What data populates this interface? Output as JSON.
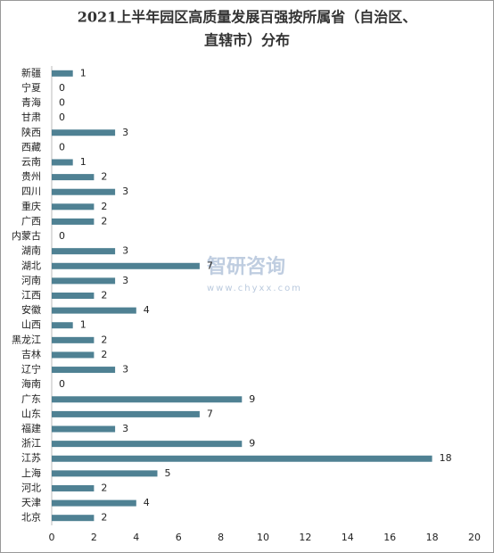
{
  "chart_data": {
    "type": "barh",
    "title": [
      "2021上半年园区高质量发展百强按所属省（自治区、",
      "直辖市）分布"
    ],
    "watermark": [
      "智研咨询",
      "www.chyxx.com"
    ],
    "categories": [
      "新疆",
      "宁夏",
      "青海",
      "甘肃",
      "陕西",
      "西藏",
      "云南",
      "贵州",
      "四川",
      "重庆",
      "广西",
      "内蒙古",
      "湖南",
      "湖北",
      "河南",
      "江西",
      "安徽",
      "山西",
      "黑龙江",
      "吉林",
      "辽宁",
      "海南",
      "广东",
      "山东",
      "福建",
      "浙江",
      "江苏",
      "上海",
      "河北",
      "天津",
      "北京"
    ],
    "values": [
      1,
      0,
      0,
      0,
      3,
      0,
      1,
      2,
      3,
      2,
      2,
      0,
      3,
      7,
      3,
      2,
      4,
      1,
      2,
      2,
      3,
      0,
      9,
      7,
      3,
      9,
      18,
      5,
      2,
      4,
      2
    ],
    "color": "#4f8193",
    "xlim": [
      0,
      20
    ],
    "xticks": [
      0,
      2,
      4,
      6,
      8,
      10,
      12,
      14,
      16,
      18,
      20
    ],
    "grid": false
  }
}
